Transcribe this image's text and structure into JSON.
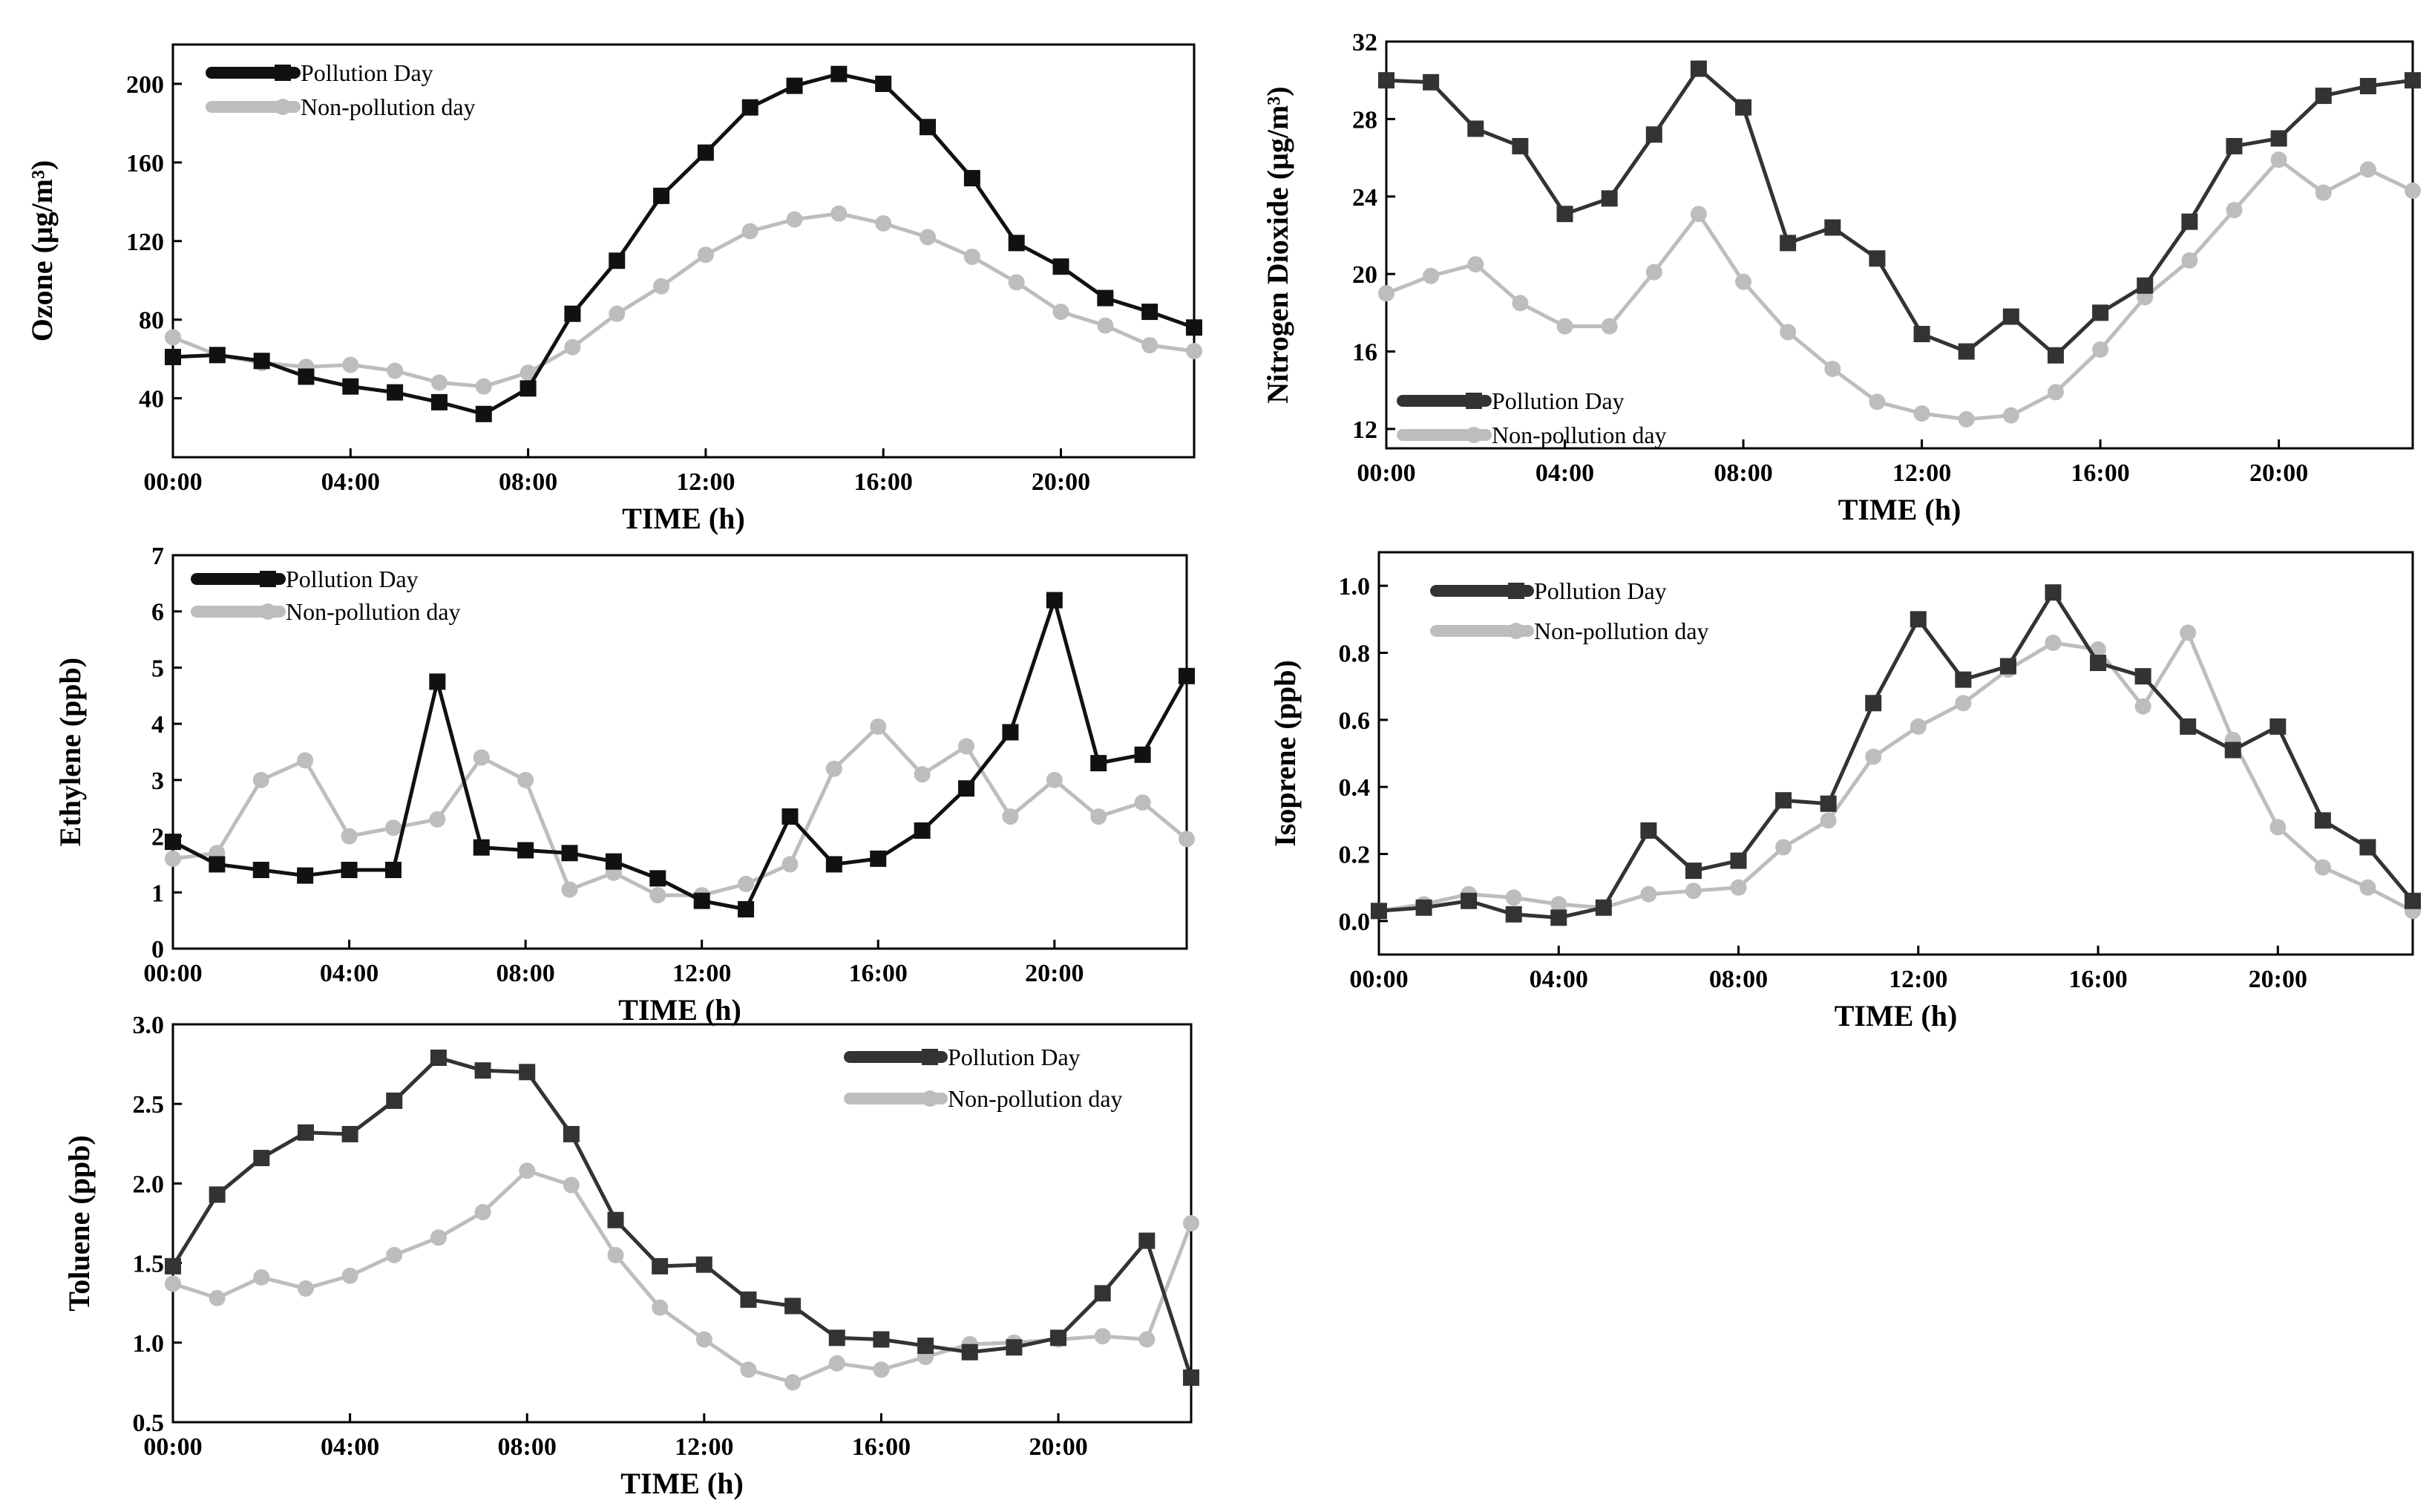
{
  "figure": {
    "colors": {
      "pollution": "#111111",
      "non_pollution": "#bdbdbd",
      "axis": "#000000",
      "background": "#ffffff"
    }
  },
  "chart_data": [
    {
      "id": "ozone",
      "type": "line",
      "ylabel": "Ozone (μg/m³)",
      "xlabel": "TIME (h)",
      "ylim": [
        10,
        220
      ],
      "yticks": [
        40,
        80,
        120,
        160,
        200
      ],
      "ytick_labels": [
        "40",
        "80",
        "120",
        "160",
        "200"
      ],
      "xlim": [
        0,
        23
      ],
      "xticks": [
        0,
        4,
        8,
        12,
        16,
        20
      ],
      "xtick_labels": [
        "00:00",
        "04:00",
        "08:00",
        "12:00",
        "16:00",
        "20:00"
      ],
      "legend": [
        "Pollution Day",
        "Non-pollution day"
      ],
      "legend_position": "top-left",
      "series": [
        {
          "name": "Pollution Day",
          "marker": "square",
          "color": "#111111",
          "values": [
            61,
            62,
            59,
            51,
            46,
            43,
            38,
            32,
            45,
            83,
            110,
            143,
            165,
            188,
            199,
            205,
            200,
            178,
            152,
            119,
            107,
            91,
            84,
            76
          ]
        },
        {
          "name": "Non-pollution day",
          "marker": "circle",
          "color": "#bdbdbd",
          "values": [
            71,
            62,
            58,
            56,
            57,
            54,
            48,
            46,
            53,
            66,
            83,
            97,
            113,
            125,
            131,
            134,
            129,
            122,
            112,
            99,
            84,
            77,
            67,
            64
          ]
        }
      ]
    },
    {
      "id": "no2",
      "type": "line",
      "ylabel": "Nitrogen Dioxide (μg/m³)",
      "xlabel": "TIME (h)",
      "ylim": [
        11,
        32
      ],
      "yticks": [
        12,
        16,
        20,
        24,
        28,
        32
      ],
      "ytick_labels": [
        "12",
        "16",
        "20",
        "24",
        "28",
        "32"
      ],
      "xlim": [
        0,
        23
      ],
      "xticks": [
        0,
        4,
        8,
        12,
        16,
        20
      ],
      "xtick_labels": [
        "00:00",
        "04:00",
        "08:00",
        "12:00",
        "16:00",
        "20:00"
      ],
      "legend": [
        "Pollution Day",
        "Non-pollution day"
      ],
      "legend_position": "bottom-left",
      "series": [
        {
          "name": "Pollution Day",
          "marker": "square",
          "color": "#333333",
          "values": [
            30.0,
            29.9,
            27.5,
            26.6,
            23.1,
            23.9,
            27.2,
            30.6,
            28.6,
            21.6,
            22.4,
            20.8,
            16.9,
            16.0,
            17.8,
            15.8,
            18.0,
            19.4,
            22.7,
            26.6,
            27.0,
            29.2,
            29.7,
            30.0
          ]
        },
        {
          "name": "Non-pollution day",
          "marker": "circle",
          "color": "#bdbdbd",
          "values": [
            19.0,
            19.9,
            20.5,
            18.5,
            17.3,
            17.3,
            20.1,
            23.1,
            19.6,
            17.0,
            15.1,
            13.4,
            12.8,
            12.5,
            12.7,
            13.9,
            16.1,
            18.8,
            20.7,
            23.3,
            25.9,
            24.2,
            25.4,
            24.3
          ]
        }
      ]
    },
    {
      "id": "ethylene",
      "type": "line",
      "ylabel": "Ethylene (ppb)",
      "xlabel": "TIME (h)",
      "ylim": [
        0,
        7
      ],
      "yticks": [
        0,
        1,
        2,
        3,
        4,
        5,
        6,
        7
      ],
      "ytick_labels": [
        "0",
        "1",
        "2",
        "3",
        "4",
        "5",
        "6",
        "7"
      ],
      "xlim": [
        0,
        23
      ],
      "xticks": [
        0,
        4,
        8,
        12,
        16,
        20
      ],
      "xtick_labels": [
        "00:00",
        "04:00",
        "08:00",
        "12:00",
        "16:00",
        "20:00"
      ],
      "legend": [
        "Pollution Day",
        "Non-pollution day"
      ],
      "legend_position": "top-left",
      "series": [
        {
          "name": "Pollution Day",
          "marker": "square",
          "color": "#111111",
          "values": [
            1.9,
            1.5,
            1.4,
            1.3,
            1.4,
            1.4,
            4.75,
            1.8,
            1.75,
            1.7,
            1.55,
            1.25,
            0.85,
            0.7,
            2.35,
            1.5,
            1.6,
            2.1,
            2.85,
            3.85,
            6.2,
            3.3,
            3.45,
            4.85
          ]
        },
        {
          "name": "Non-pollution day",
          "marker": "circle",
          "color": "#bdbdbd",
          "values": [
            1.6,
            1.7,
            3.0,
            3.35,
            2.0,
            2.15,
            2.3,
            3.4,
            3.0,
            1.05,
            1.35,
            0.95,
            0.95,
            1.15,
            1.5,
            3.2,
            3.95,
            3.1,
            3.6,
            2.35,
            3.0,
            2.35,
            2.6,
            1.95
          ]
        }
      ]
    },
    {
      "id": "isoprene",
      "type": "line",
      "ylabel": "Isoprene (ppb)",
      "xlabel": "TIME (h)",
      "ylim": [
        -0.1,
        1.1
      ],
      "yticks": [
        0.0,
        0.2,
        0.4,
        0.6,
        0.8,
        1.0
      ],
      "ytick_labels": [
        "0.0",
        "0.2",
        "0.4",
        "0.6",
        "0.8",
        "1.0"
      ],
      "xlim": [
        0,
        23
      ],
      "xticks": [
        0,
        4,
        8,
        12,
        16,
        20
      ],
      "xtick_labels": [
        "00:00",
        "04:00",
        "08:00",
        "12:00",
        "16:00",
        "20:00"
      ],
      "legend": [
        "Pollution Day",
        "Non-pollution day"
      ],
      "legend_position": "top-left",
      "series": [
        {
          "name": "Pollution Day",
          "marker": "square",
          "color": "#333333",
          "values": [
            0.03,
            0.04,
            0.06,
            0.02,
            0.01,
            0.04,
            0.27,
            0.15,
            0.18,
            0.36,
            0.35,
            0.65,
            0.9,
            0.72,
            0.76,
            0.98,
            0.77,
            0.73,
            0.58,
            0.51,
            0.58,
            0.3,
            0.22,
            0.06
          ]
        },
        {
          "name": "Non-pollution day",
          "marker": "circle",
          "color": "#bdbdbd",
          "values": [
            0.03,
            0.05,
            0.08,
            0.07,
            0.05,
            0.04,
            0.08,
            0.09,
            0.1,
            0.22,
            0.3,
            0.49,
            0.58,
            0.65,
            0.75,
            0.83,
            0.81,
            0.64,
            0.86,
            0.54,
            0.28,
            0.16,
            0.1,
            0.03
          ]
        }
      ]
    },
    {
      "id": "toluene",
      "type": "line",
      "ylabel": "Toluene (ppb)",
      "xlabel": "TIME (h)",
      "ylim": [
        0.5,
        3.0
      ],
      "yticks": [
        0.5,
        1.0,
        1.5,
        2.0,
        2.5,
        3.0
      ],
      "ytick_labels": [
        "0.5",
        "1.0",
        "1.5",
        "2.0",
        "2.5",
        "3.0"
      ],
      "xlim": [
        0,
        23
      ],
      "xticks": [
        0,
        4,
        8,
        12,
        16,
        20
      ],
      "xtick_labels": [
        "00:00",
        "04:00",
        "08:00",
        "12:00",
        "16:00",
        "20:00"
      ],
      "legend": [
        "Pollution Day",
        "Non-pollution day"
      ],
      "legend_position": "top-right",
      "series": [
        {
          "name": "Pollution Day",
          "marker": "square",
          "color": "#333333",
          "values": [
            1.48,
            1.93,
            2.16,
            2.32,
            2.31,
            2.52,
            2.79,
            2.71,
            2.7,
            2.31,
            1.77,
            1.48,
            1.49,
            1.27,
            1.23,
            1.03,
            1.02,
            0.98,
            0.94,
            0.97,
            1.03,
            1.31,
            1.64,
            0.78
          ]
        },
        {
          "name": "Non-pollution day",
          "marker": "circle",
          "color": "#bdbdbd",
          "values": [
            1.37,
            1.28,
            1.41,
            1.34,
            1.42,
            1.55,
            1.66,
            1.82,
            2.08,
            1.99,
            1.55,
            1.22,
            1.02,
            0.83,
            0.75,
            0.87,
            0.83,
            0.91,
            0.99,
            1.0,
            1.02,
            1.04,
            1.02,
            1.75
          ]
        }
      ]
    }
  ]
}
